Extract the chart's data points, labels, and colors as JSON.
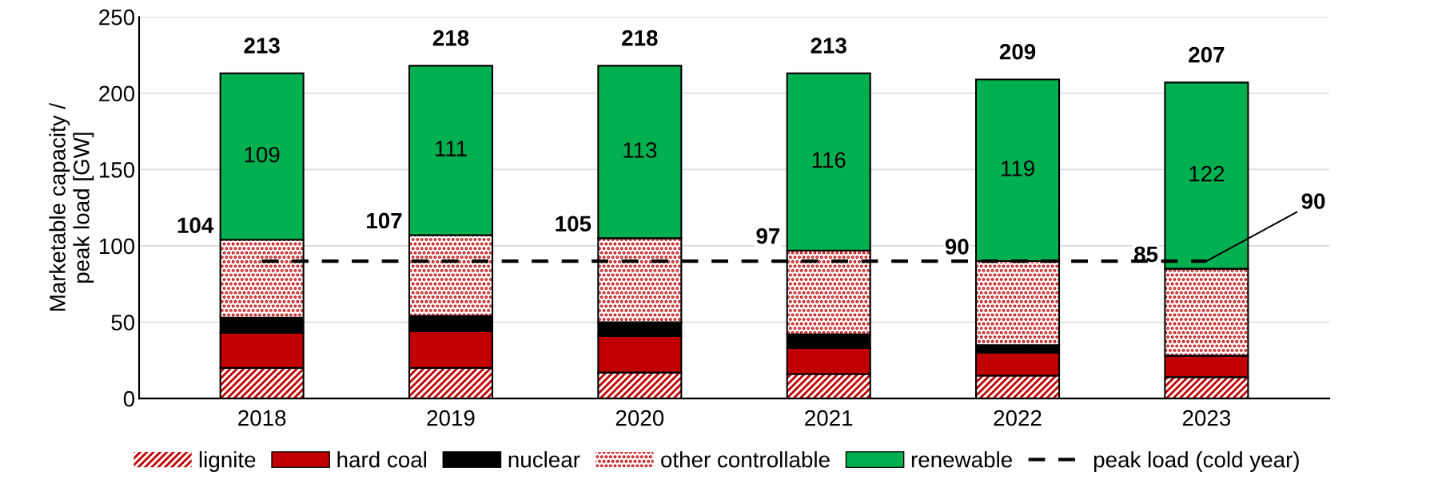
{
  "chart_data": {
    "type": "bar",
    "stacked": true,
    "ylabel": "Marketable capacity /\npeak load [GW]",
    "categories": [
      "2018",
      "2019",
      "2020",
      "2021",
      "2022",
      "2023"
    ],
    "series": [
      {
        "name": "lignite",
        "color": "#c00000",
        "values": [
          20,
          20,
          17,
          16,
          15,
          14
        ]
      },
      {
        "name": "hard coal",
        "color": "#c00000",
        "values": [
          23,
          24,
          24,
          17,
          15,
          14
        ]
      },
      {
        "name": "nuclear",
        "color": "#000000",
        "values": [
          10,
          10,
          9,
          9,
          5,
          0
        ]
      },
      {
        "name": "other controllable",
        "color": "#c00000",
        "values": [
          51,
          53,
          55,
          55,
          55,
          57
        ]
      },
      {
        "name": "renewable",
        "color": "#00b050",
        "values": [
          109,
          111,
          113,
          116,
          119,
          122
        ],
        "value_labels": [
          "109",
          "111",
          "113",
          "116",
          "119",
          "122"
        ]
      },
      {
        "name": "peak load (cold year)",
        "type": "line",
        "line_style": "dashed",
        "color": "#000000",
        "values": [
          90,
          90,
          90,
          90,
          90,
          90
        ]
      }
    ],
    "totals": [
      "213",
      "218",
      "218",
      "213",
      "209",
      "207"
    ],
    "annotations": [
      {
        "text": "104",
        "x": "2018",
        "y": 104
      },
      {
        "text": "107",
        "x": "2019",
        "y": 107
      },
      {
        "text": "105",
        "x": "2020",
        "y": 105
      },
      {
        "text": "97",
        "x": "2021",
        "y": 97
      },
      {
        "text": "90",
        "x": "2022",
        "y": 90
      },
      {
        "text": "85",
        "x": "2023",
        "y": 85
      },
      {
        "text": "90",
        "x": "2023",
        "y": 90
      }
    ],
    "ylim": [
      0,
      250
    ],
    "yticks": [
      0,
      50,
      100,
      150,
      200,
      250
    ],
    "grid": "y",
    "legend": "bottom"
  }
}
